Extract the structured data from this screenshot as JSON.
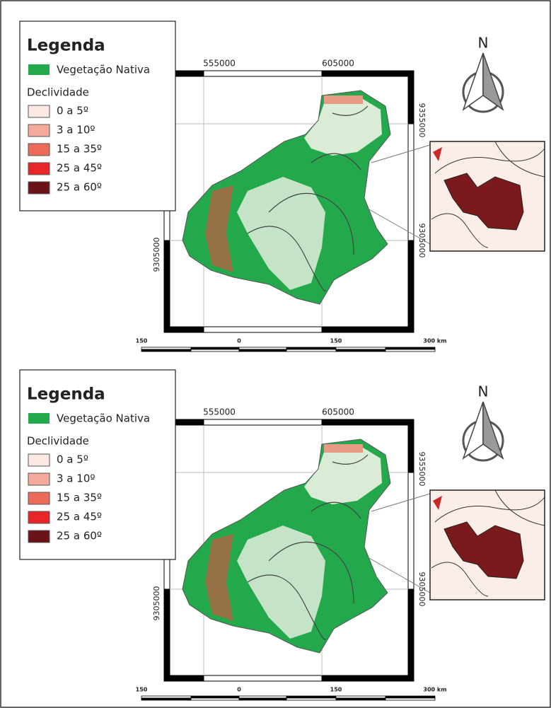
{
  "panels": [
    {
      "legend": {
        "title": "Legenda",
        "native": "Vegetação Nativa",
        "slope_title": "Declividade",
        "classes": [
          "0 a 5º",
          "3 a 10º",
          "15 a 35º",
          "25 a 45º",
          "25 a 60º"
        ]
      },
      "x_labels": [
        "555000",
        "605000"
      ],
      "y_labels": [
        "9355000",
        "9305000"
      ],
      "north": "N",
      "scale_labels": [
        "150",
        "0",
        "150",
        "300 km"
      ]
    },
    {
      "legend": {
        "title": "Legenda",
        "native": "Vegetação Nativa",
        "slope_title": "Declividade",
        "classes": [
          "0 a 5º",
          "3 a 10º",
          "15 a 35º",
          "25 a 45º",
          "25 a 60º"
        ]
      },
      "x_labels": [
        "555000",
        "605000"
      ],
      "y_labels": [
        "9355000",
        "9305000"
      ],
      "north": "N",
      "scale_labels": [
        "150",
        "0",
        "150",
        "300 km"
      ]
    }
  ]
}
